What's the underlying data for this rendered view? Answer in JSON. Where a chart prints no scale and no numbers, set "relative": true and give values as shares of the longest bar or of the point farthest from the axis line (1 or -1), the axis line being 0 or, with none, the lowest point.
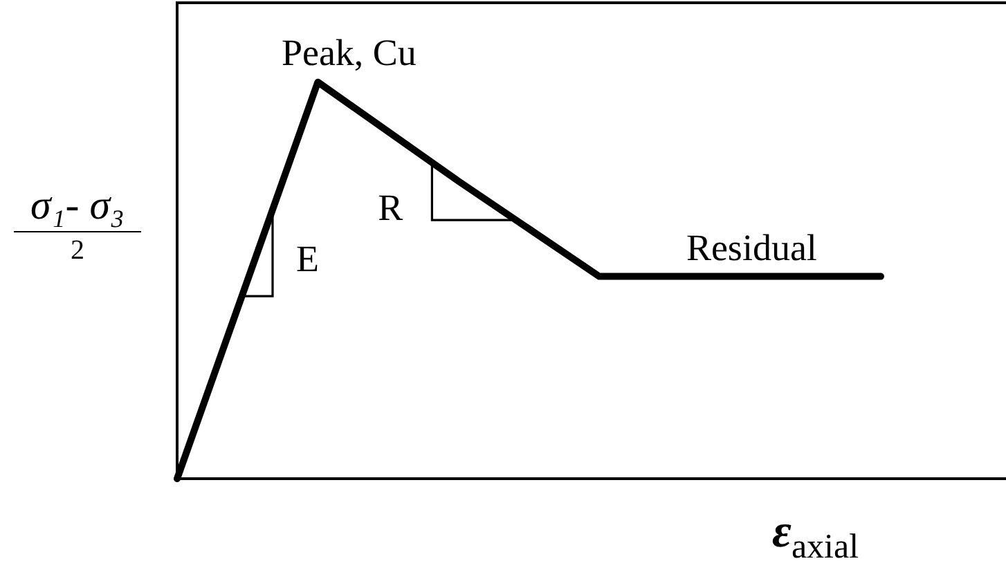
{
  "chart_data": {
    "type": "line",
    "relative": true,
    "xlabel": "ε$_{axial}$",
    "ylabel": "σ₁- σ₃\n2",
    "categories": [
      null,
      null,
      null,
      null,
      null,
      null
    ],
    "values": [
      0,
      1,
      0.75,
      0.51,
      0.51,
      0.51
    ],
    "color": "#000000",
    "annotations": [
      "Peak, Cu",
      "E",
      "R",
      "Residual"
    ]
  }
}
